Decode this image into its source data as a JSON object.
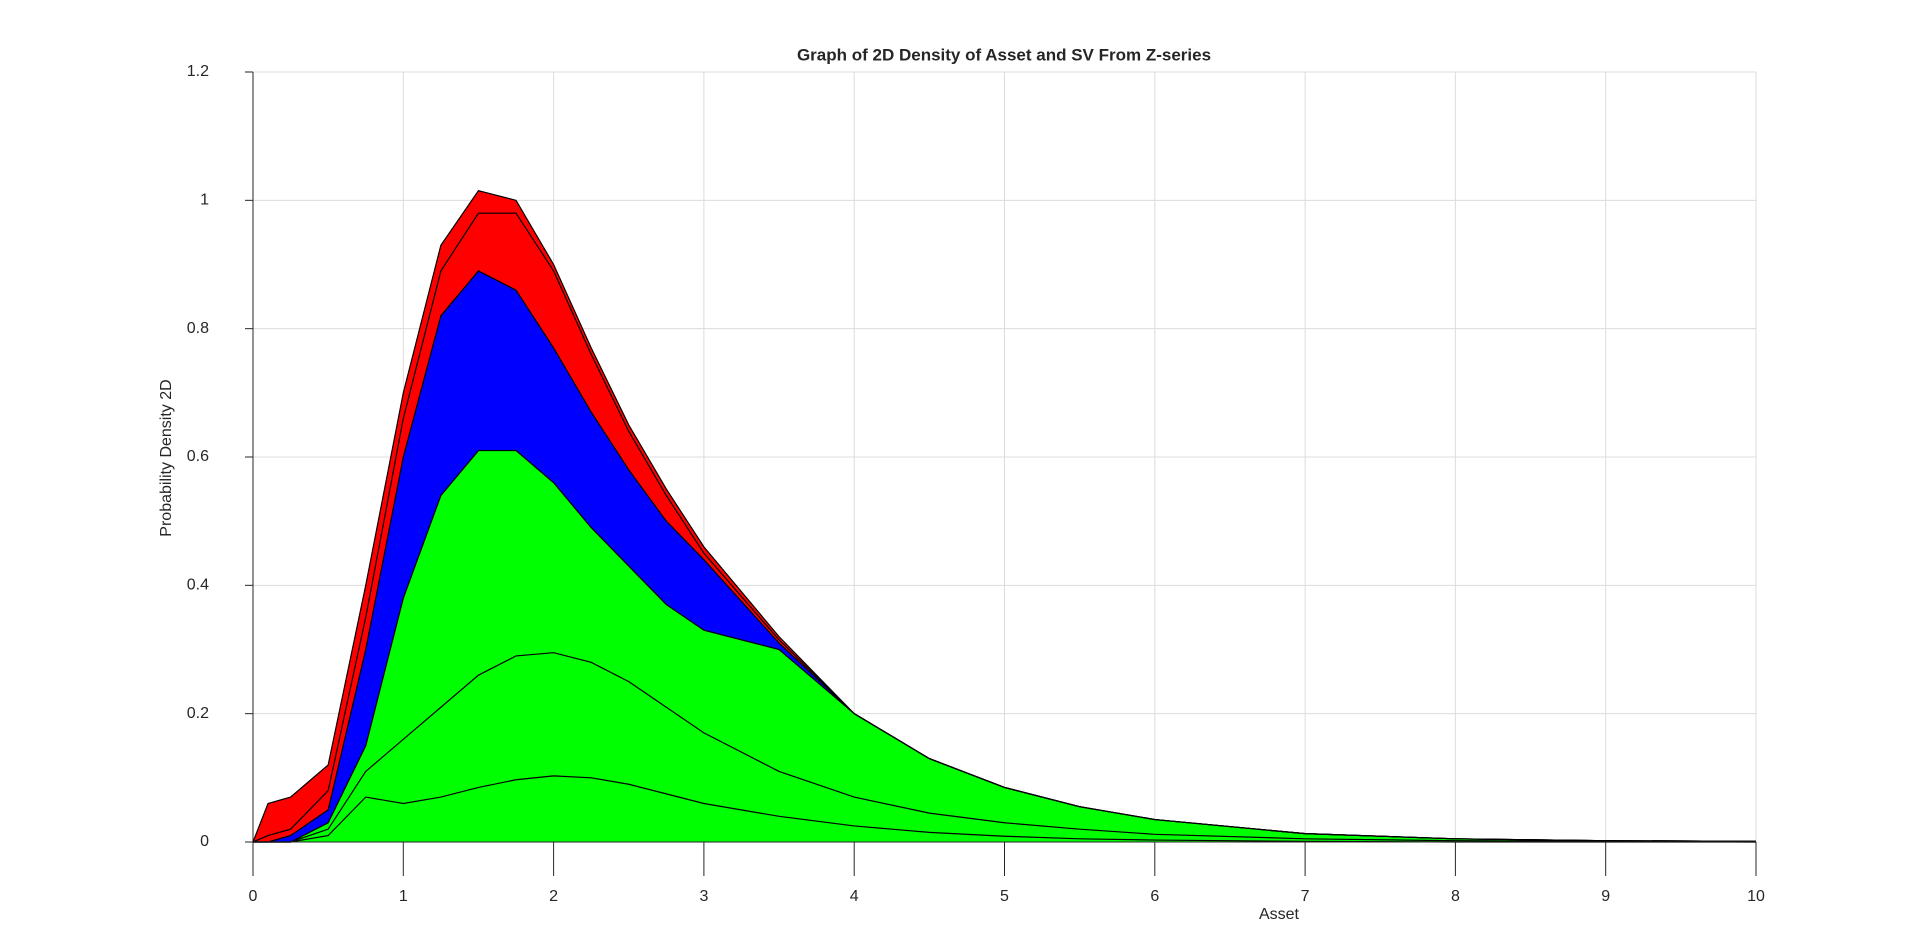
{
  "chart_data": {
    "type": "surface-profile",
    "title": "Graph of 2D Density of Asset and SV From Z-series",
    "xlabel": "Asset",
    "ylabel": "Probability Density 2D",
    "x": [
      0,
      0.1,
      0.25,
      0.5,
      0.75,
      1,
      1.25,
      1.5,
      1.75,
      2,
      2.25,
      2.5,
      2.75,
      3,
      3.5,
      4,
      4.5,
      5,
      5.5,
      6,
      7,
      8,
      9,
      10
    ],
    "series": [
      {
        "color": "#ff0000",
        "values": [
          0,
          0.06,
          0.07,
          0.12,
          0.4,
          0.7,
          0.93,
          1.015,
          1.0,
          0.9,
          0.77,
          0.65,
          0.55,
          0.46,
          0.32,
          0.2,
          0.13,
          0.085,
          0.055,
          0.035,
          0.013,
          0.005,
          0.002,
          0.001
        ]
      },
      {
        "color": "#ff0000",
        "values": [
          0,
          0.01,
          0.02,
          0.08,
          0.35,
          0.66,
          0.89,
          0.98,
          0.98,
          0.89,
          0.76,
          0.64,
          0.54,
          0.45,
          0.315,
          0.2,
          0.13,
          0.085,
          0.055,
          0.035,
          0.013,
          0.005,
          0.002,
          0.001
        ]
      },
      {
        "color": "#0000ff",
        "values": [
          0,
          0,
          0.01,
          0.05,
          0.3,
          0.6,
          0.82,
          0.89,
          0.86,
          0.77,
          0.67,
          0.58,
          0.5,
          0.44,
          0.31,
          0.2,
          0.13,
          0.085,
          0.055,
          0.035,
          0.013,
          0.005,
          0.002,
          0.001
        ]
      },
      {
        "color": "#00ff00",
        "values": [
          0,
          0,
          0,
          0.03,
          0.15,
          0.38,
          0.54,
          0.61,
          0.61,
          0.56,
          0.49,
          0.43,
          0.37,
          0.33,
          0.3,
          0.2,
          0.13,
          0.085,
          0.055,
          0.035,
          0.013,
          0.005,
          0.002,
          0.001
        ]
      },
      {
        "color": "#00ff00",
        "values": [
          0,
          0,
          0,
          0.02,
          0.11,
          0.16,
          0.21,
          0.26,
          0.29,
          0.295,
          0.28,
          0.25,
          0.21,
          0.17,
          0.11,
          0.07,
          0.045,
          0.03,
          0.02,
          0.012,
          0.005,
          0.002,
          0.001,
          0
        ]
      },
      {
        "color": "#00ff00",
        "values": [
          0,
          0,
          0,
          0.01,
          0.07,
          0.06,
          0.07,
          0.085,
          0.097,
          0.103,
          0.1,
          0.09,
          0.075,
          0.06,
          0.04,
          0.025,
          0.015,
          0.009,
          0.005,
          0.003,
          0.001,
          0,
          0,
          0
        ]
      }
    ],
    "xlim": [
      0,
      10
    ],
    "xticks": [
      0,
      1,
      2,
      3,
      4,
      5,
      6,
      7,
      8,
      9,
      10
    ],
    "ylim": [
      0,
      1.2
    ],
    "yticks": [
      0,
      0.2,
      0.4,
      0.6,
      0.8,
      1,
      1.2
    ],
    "grid": true
  }
}
